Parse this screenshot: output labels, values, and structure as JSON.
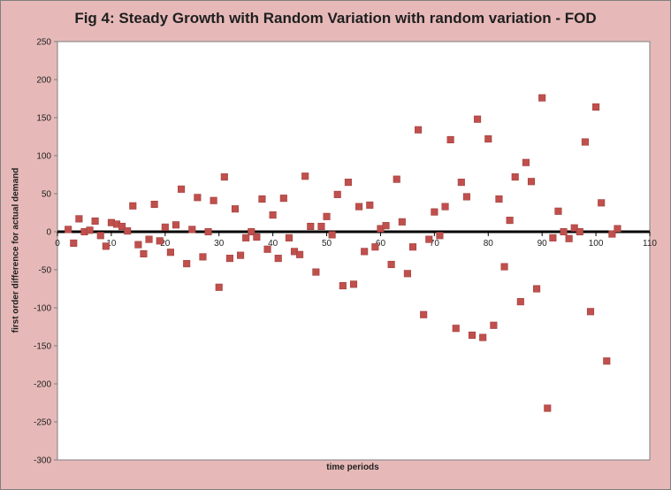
{
  "chart_data": {
    "type": "scatter",
    "title": "Fig 4: Steady Growth with Random Variation with random variation - FOD",
    "xlabel": "time periods",
    "ylabel": "first order difference for actual demand",
    "xlim": [
      0,
      110
    ],
    "ylim": [
      -300,
      250
    ],
    "x_ticks": [
      0,
      10,
      20,
      30,
      40,
      50,
      60,
      70,
      80,
      90,
      100,
      110
    ],
    "y_ticks": [
      -300,
      -250,
      -200,
      -150,
      -100,
      -50,
      0,
      50,
      100,
      150,
      200,
      250
    ],
    "grid": false,
    "marker_color": "#c0504d",
    "plot_background": "#ffffff",
    "frame_background": "#e6b9b8",
    "points": [
      [
        2,
        3
      ],
      [
        3,
        -15
      ],
      [
        4,
        17
      ],
      [
        5,
        0
      ],
      [
        6,
        2
      ],
      [
        7,
        14
      ],
      [
        8,
        -5
      ],
      [
        9,
        -19
      ],
      [
        10,
        12
      ],
      [
        11,
        10
      ],
      [
        12,
        7
      ],
      [
        13,
        1
      ],
      [
        14,
        34
      ],
      [
        15,
        -17
      ],
      [
        16,
        -29
      ],
      [
        17,
        -10
      ],
      [
        18,
        36
      ],
      [
        19,
        -12
      ],
      [
        20,
        6
      ],
      [
        21,
        -27
      ],
      [
        22,
        9
      ],
      [
        23,
        56
      ],
      [
        24,
        -42
      ],
      [
        25,
        3
      ],
      [
        26,
        45
      ],
      [
        27,
        -33
      ],
      [
        28,
        0
      ],
      [
        29,
        41
      ],
      [
        30,
        -73
      ],
      [
        31,
        72
      ],
      [
        32,
        -35
      ],
      [
        33,
        30
      ],
      [
        34,
        -31
      ],
      [
        35,
        -8
      ],
      [
        36,
        0
      ],
      [
        37,
        -7
      ],
      [
        38,
        43
      ],
      [
        39,
        -23
      ],
      [
        40,
        22
      ],
      [
        41,
        -35
      ],
      [
        42,
        44
      ],
      [
        43,
        -8
      ],
      [
        44,
        -26
      ],
      [
        45,
        -30
      ],
      [
        46,
        73
      ],
      [
        47,
        7
      ],
      [
        48,
        -53
      ],
      [
        49,
        7
      ],
      [
        50,
        20
      ],
      [
        51,
        -4
      ],
      [
        52,
        49
      ],
      [
        53,
        -71
      ],
      [
        54,
        65
      ],
      [
        55,
        -69
      ],
      [
        56,
        33
      ],
      [
        57,
        -26
      ],
      [
        58,
        35
      ],
      [
        59,
        -20
      ],
      [
        60,
        4
      ],
      [
        61,
        8
      ],
      [
        62,
        -43
      ],
      [
        63,
        69
      ],
      [
        64,
        13
      ],
      [
        65,
        -55
      ],
      [
        66,
        -20
      ],
      [
        67,
        134
      ],
      [
        68,
        -109
      ],
      [
        69,
        -10
      ],
      [
        70,
        26
      ],
      [
        71,
        -5
      ],
      [
        72,
        33
      ],
      [
        73,
        121
      ],
      [
        74,
        -127
      ],
      [
        75,
        65
      ],
      [
        76,
        46
      ],
      [
        77,
        -136
      ],
      [
        78,
        148
      ],
      [
        79,
        -139
      ],
      [
        80,
        122
      ],
      [
        81,
        -123
      ],
      [
        82,
        43
      ],
      [
        83,
        -46
      ],
      [
        84,
        15
      ],
      [
        85,
        72
      ],
      [
        86,
        -92
      ],
      [
        87,
        91
      ],
      [
        88,
        66
      ],
      [
        89,
        -75
      ],
      [
        90,
        176
      ],
      [
        91,
        -232
      ],
      [
        92,
        -8
      ],
      [
        93,
        27
      ],
      [
        94,
        0
      ],
      [
        95,
        -9
      ],
      [
        96,
        5
      ],
      [
        97,
        0
      ],
      [
        98,
        118
      ],
      [
        99,
        -105
      ],
      [
        100,
        164
      ],
      [
        101,
        38
      ],
      [
        102,
        -170
      ],
      [
        103,
        -3
      ],
      [
        104,
        4
      ]
    ]
  }
}
